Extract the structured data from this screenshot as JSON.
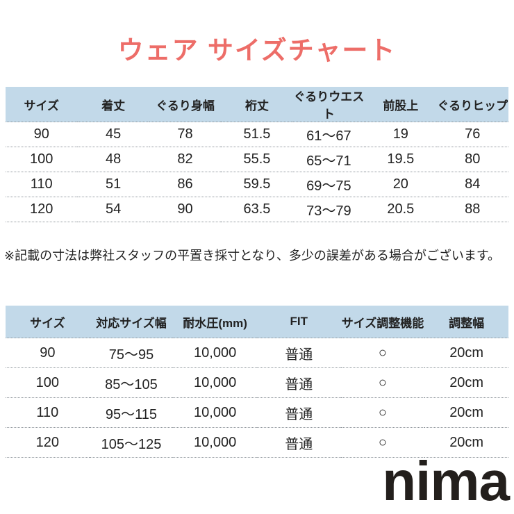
{
  "title": "ウェア サイズチャート",
  "note": "※記載の寸法は弊社スタッフの平置き採寸となり、多少の誤差がある場合がございます。",
  "brand": "nima",
  "colors": {
    "accent": "#ed6d68",
    "header_bg": "#c2d9e9",
    "text": "#222222",
    "line": "#8f969c",
    "brand": "#231f1c"
  },
  "size_table": {
    "columns": [
      "サイズ",
      "着丈",
      "ぐるり身幅",
      "裄丈",
      "ぐるりウエスト",
      "前股上",
      "ぐるりヒップ"
    ],
    "rows": [
      [
        "90",
        "45",
        "78",
        "51.5",
        "61〜67",
        "19",
        "76"
      ],
      [
        "100",
        "48",
        "82",
        "55.5",
        "65〜71",
        "19.5",
        "80"
      ],
      [
        "110",
        "51",
        "86",
        "59.5",
        "69〜75",
        "20",
        "84"
      ],
      [
        "120",
        "54",
        "90",
        "63.5",
        "73〜79",
        "20.5",
        "88"
      ]
    ]
  },
  "spec_table": {
    "columns": [
      "サイズ",
      "対応サイズ幅",
      "耐水圧(mm)",
      "FIT",
      "サイズ調整機能",
      "調整幅"
    ],
    "rows": [
      [
        "90",
        "75〜95",
        "10,000",
        "普通",
        "○",
        "20cm"
      ],
      [
        "100",
        "85〜105",
        "10,000",
        "普通",
        "○",
        "20cm"
      ],
      [
        "110",
        "95〜115",
        "10,000",
        "普通",
        "○",
        "20cm"
      ],
      [
        "120",
        "105〜125",
        "10,000",
        "普通",
        "○",
        "20cm"
      ]
    ]
  }
}
